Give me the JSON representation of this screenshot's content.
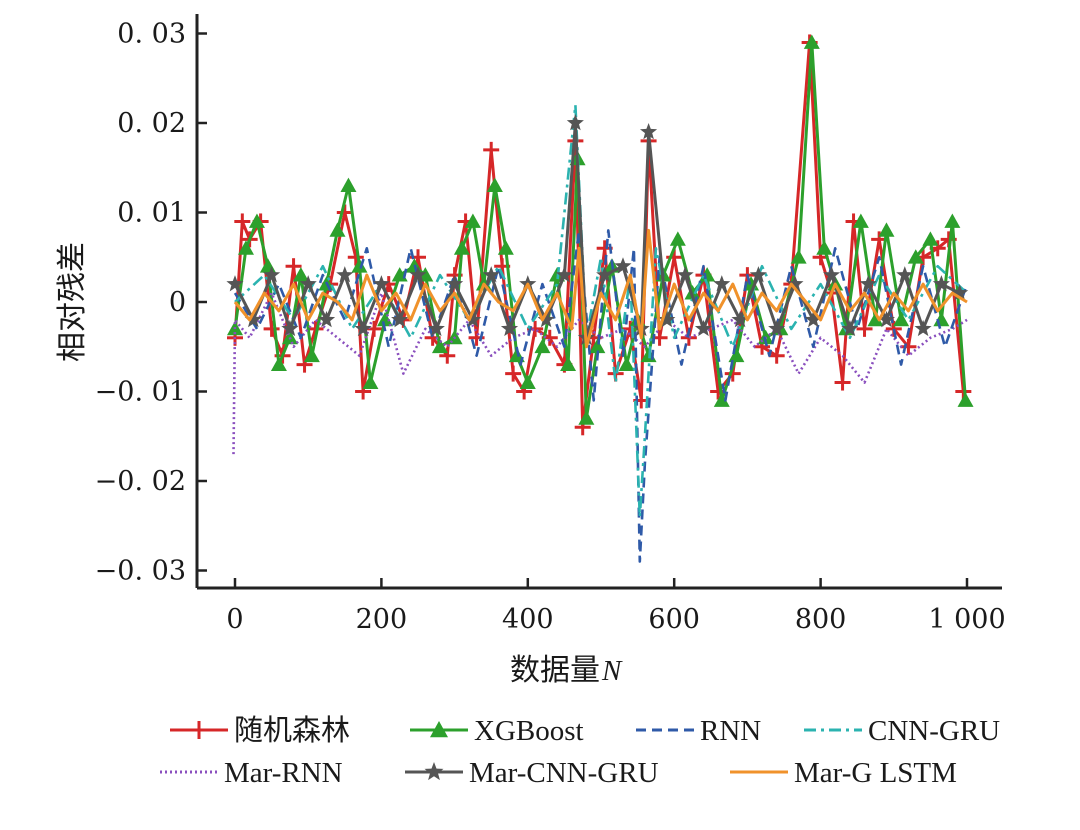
{
  "chart_data": {
    "type": "line",
    "xlabel": "数据量",
    "xlabel_var": "N",
    "ylabel": "相对残差",
    "xlim": [
      -20,
      1030
    ],
    "ylim": [
      -0.032,
      0.032
    ],
    "x_ticks": [
      0,
      200,
      400,
      600,
      800,
      1000
    ],
    "x_tick_labels": [
      "0",
      "200",
      "400",
      "600",
      "800",
      "1 000"
    ],
    "y_ticks": [
      0.03,
      0.02,
      0.01,
      0,
      -0.01,
      -0.02,
      -0.03
    ],
    "y_tick_labels": [
      "0. 03",
      "0. 02",
      "0. 01",
      "0",
      "−0. 01",
      "−0. 02",
      "−0. 03"
    ],
    "grid": false,
    "legend_position": "bottom",
    "series": [
      {
        "name": "随机森林",
        "color": "#d62728",
        "style": "solid",
        "marker": "plus",
        "x": [
          0,
          10,
          20,
          35,
          50,
          65,
          80,
          95,
          110,
          130,
          150,
          165,
          175,
          190,
          210,
          230,
          250,
          270,
          290,
          300,
          315,
          330,
          350,
          365,
          380,
          395,
          410,
          430,
          450,
          465,
          475,
          490,
          505,
          520,
          540,
          555,
          565,
          580,
          600,
          620,
          640,
          660,
          680,
          700,
          720,
          740,
          760,
          785,
          800,
          815,
          830,
          845,
          860,
          880,
          900,
          920,
          940,
          960,
          975,
          995
        ],
        "values": [
          -0.004,
          0.009,
          0.007,
          0.009,
          -0.003,
          -0.006,
          0.004,
          -0.007,
          -0.003,
          0.002,
          0.01,
          0.005,
          -0.01,
          -0.003,
          0.002,
          -0.002,
          0.005,
          -0.004,
          -0.006,
          0.003,
          0.009,
          -0.004,
          0.017,
          0.004,
          -0.008,
          -0.01,
          -0.003,
          -0.004,
          -0.007,
          0.018,
          -0.014,
          -0.004,
          0.006,
          -0.008,
          -0.003,
          -0.011,
          0.018,
          -0.004,
          0.005,
          -0.004,
          0.003,
          -0.01,
          -0.008,
          0.003,
          -0.005,
          -0.006,
          0.002,
          0.029,
          0.005,
          0.001,
          -0.009,
          0.009,
          -0.003,
          0.007,
          -0.003,
          -0.005,
          0.005,
          0.006,
          0.007,
          -0.01
        ]
      },
      {
        "name": "XGBoost",
        "color": "#2ca02c",
        "style": "solid",
        "marker": "triangle",
        "x": [
          0,
          15,
          30,
          45,
          60,
          75,
          90,
          105,
          125,
          140,
          155,
          170,
          185,
          205,
          225,
          245,
          260,
          280,
          300,
          310,
          325,
          340,
          355,
          370,
          385,
          400,
          420,
          440,
          455,
          468,
          480,
          495,
          515,
          535,
          550,
          565,
          585,
          605,
          625,
          645,
          665,
          685,
          705,
          725,
          745,
          770,
          788,
          805,
          820,
          835,
          855,
          875,
          890,
          910,
          930,
          950,
          965,
          980,
          998
        ],
        "values": [
          -0.003,
          0.006,
          0.009,
          0.004,
          -0.007,
          -0.004,
          0.003,
          -0.006,
          0.002,
          0.008,
          0.013,
          0.004,
          -0.009,
          -0.002,
          0.003,
          0.004,
          0.003,
          -0.005,
          -0.004,
          0.006,
          0.009,
          0.002,
          0.013,
          0.006,
          -0.006,
          -0.009,
          -0.005,
          0.003,
          -0.007,
          0.016,
          -0.013,
          -0.005,
          0.004,
          -0.007,
          -0.002,
          -0.006,
          0.003,
          0.007,
          0.001,
          0.003,
          -0.011,
          -0.006,
          0.002,
          -0.004,
          -0.003,
          0.005,
          0.029,
          0.006,
          0.002,
          -0.003,
          0.009,
          -0.002,
          0.008,
          -0.002,
          0.005,
          0.007,
          -0.002,
          0.009,
          -0.011
        ]
      },
      {
        "name": "RNN",
        "color": "#2f5aa8",
        "style": "dashed",
        "marker": "none",
        "x": [
          0,
          30,
          60,
          90,
          120,
          150,
          180,
          210,
          240,
          270,
          300,
          330,
          360,
          390,
          420,
          450,
          470,
          490,
          510,
          530,
          545,
          553,
          560,
          580,
          610,
          640,
          670,
          700,
          730,
          760,
          790,
          820,
          850,
          880,
          910,
          940,
          970,
          1000
        ],
        "values": [
          0.001,
          -0.003,
          0.002,
          -0.004,
          0.003,
          -0.002,
          0.006,
          -0.005,
          0.006,
          -0.004,
          0.003,
          -0.006,
          0.004,
          -0.007,
          0.002,
          -0.005,
          0.008,
          -0.011,
          0.008,
          -0.006,
          0.006,
          -0.029,
          -0.018,
          0.005,
          -0.007,
          0.004,
          -0.011,
          0.003,
          -0.006,
          0.004,
          -0.005,
          0.006,
          -0.003,
          0.005,
          -0.007,
          0.004,
          -0.005,
          0.002
        ]
      },
      {
        "name": "CNN-GRU",
        "color": "#2bb3b0",
        "style": "dashdot",
        "marker": "none",
        "x": [
          0,
          40,
          80,
          120,
          160,
          200,
          240,
          280,
          320,
          360,
          400,
          440,
          465,
          480,
          500,
          520,
          540,
          553,
          560,
          575,
          600,
          640,
          680,
          720,
          760,
          800,
          840,
          880,
          920,
          960,
          1000
        ],
        "values": [
          0.0,
          0.003,
          -0.002,
          0.004,
          -0.003,
          0.002,
          -0.004,
          0.003,
          -0.002,
          0.004,
          -0.003,
          0.002,
          0.022,
          -0.004,
          0.005,
          -0.009,
          0.003,
          -0.024,
          -0.015,
          0.006,
          -0.004,
          0.003,
          -0.005,
          0.004,
          -0.003,
          0.002,
          -0.004,
          0.003,
          -0.002,
          0.004,
          0.001
        ]
      },
      {
        "name": "Mar-RNN",
        "color": "#8a4fbe",
        "style": "dotted",
        "marker": "none",
        "x": [
          -2,
          0,
          20,
          50,
          80,
          110,
          140,
          170,
          200,
          230,
          260,
          290,
          320,
          350,
          380,
          410,
          440,
          470,
          500,
          530,
          560,
          590,
          620,
          650,
          680,
          710,
          740,
          770,
          800,
          830,
          860,
          890,
          920,
          950,
          980,
          1000
        ],
        "values": [
          -0.017,
          -0.002,
          -0.004,
          0.001,
          -0.005,
          -0.002,
          -0.004,
          -0.006,
          0.001,
          -0.008,
          -0.003,
          -0.005,
          -0.002,
          -0.006,
          -0.004,
          -0.003,
          -0.005,
          -0.002,
          -0.004,
          -0.003,
          -0.005,
          -0.002,
          -0.004,
          -0.003,
          -0.002,
          -0.005,
          -0.003,
          -0.008,
          -0.004,
          -0.006,
          -0.009,
          -0.003,
          -0.006,
          -0.004,
          -0.003,
          -0.002
        ]
      },
      {
        "name": "Mar-CNN-GRU",
        "color": "#555555",
        "style": "solid",
        "marker": "star",
        "x": [
          0,
          25,
          50,
          75,
          100,
          125,
          150,
          175,
          200,
          225,
          250,
          275,
          300,
          325,
          350,
          375,
          400,
          425,
          450,
          465,
          480,
          505,
          530,
          555,
          565,
          590,
          615,
          640,
          665,
          690,
          715,
          740,
          765,
          790,
          815,
          840,
          865,
          890,
          915,
          940,
          965,
          990
        ],
        "values": [
          0.002,
          -0.002,
          0.003,
          -0.003,
          0.002,
          -0.002,
          0.003,
          -0.003,
          0.002,
          -0.002,
          0.003,
          -0.003,
          0.002,
          -0.002,
          0.003,
          -0.003,
          0.002,
          -0.002,
          0.003,
          0.02,
          -0.004,
          0.003,
          0.004,
          -0.003,
          0.019,
          -0.002,
          0.003,
          -0.003,
          0.002,
          -0.002,
          0.003,
          -0.003,
          0.002,
          -0.002,
          0.003,
          -0.003,
          0.002,
          -0.002,
          0.003,
          -0.003,
          0.002,
          0.001
        ]
      },
      {
        "name": "Mar-G LSTM",
        "color": "#f0922b",
        "style": "solid",
        "marker": "none",
        "x": [
          0,
          20,
          40,
          60,
          80,
          100,
          120,
          140,
          160,
          180,
          200,
          220,
          240,
          260,
          280,
          300,
          320,
          340,
          360,
          380,
          400,
          420,
          440,
          460,
          470,
          480,
          500,
          520,
          540,
          555,
          565,
          580,
          600,
          620,
          640,
          660,
          680,
          700,
          720,
          740,
          760,
          780,
          800,
          820,
          840,
          860,
          880,
          900,
          920,
          940,
          960,
          980,
          1000
        ],
        "values": [
          0.0,
          -0.002,
          0.001,
          -0.001,
          0.002,
          -0.002,
          0.001,
          0.0,
          -0.002,
          0.003,
          -0.001,
          0.001,
          -0.002,
          0.002,
          -0.001,
          0.001,
          -0.002,
          0.002,
          0.0,
          -0.001,
          0.002,
          -0.002,
          0.001,
          -0.003,
          0.006,
          -0.005,
          0.001,
          -0.002,
          0.003,
          -0.004,
          0.008,
          -0.003,
          0.002,
          -0.002,
          0.001,
          -0.001,
          0.002,
          -0.002,
          0.001,
          -0.001,
          0.002,
          0.0,
          -0.002,
          0.002,
          -0.001,
          0.001,
          -0.002,
          0.001,
          -0.001,
          0.002,
          -0.001,
          0.001,
          0.0
        ]
      }
    ]
  }
}
